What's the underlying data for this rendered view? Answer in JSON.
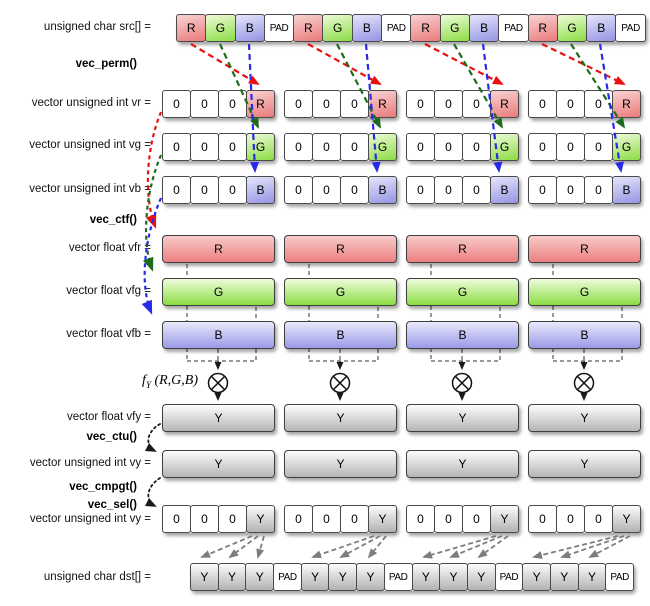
{
  "labels": {
    "src": "unsigned char src[] =",
    "vec_perm": "vec_perm()",
    "vr": "vector unsigned int vr =",
    "vg": "vector unsigned int vg =",
    "vb": "vector unsigned int vb =",
    "vec_ctf": "vec_ctf()",
    "vfr": "vector float vfr =",
    "vfg": "vector float vfg =",
    "vfb": "vector float vfb =",
    "fy_func": "f",
    "fy_sub": "Y",
    "fy_args": " (R,G,B)",
    "vfy": "vector float vfy =",
    "vec_ctu": "vec_ctu()",
    "vy": "vector unsigned int vy =",
    "vec_cmpgt": "vec_cmpgt()",
    "vec_sel": "vec_sel()",
    "vy2": "vector unsigned int vy =",
    "dst": "unsigned char dst[] ="
  },
  "rows": {
    "src": [
      "R",
      "G",
      "B",
      "PAD",
      "R",
      "G",
      "B",
      "PAD",
      "R",
      "G",
      "B",
      "PAD",
      "R",
      "G",
      "B",
      "PAD"
    ],
    "vr_groups": [
      [
        "0",
        "0",
        "0",
        "R"
      ],
      [
        "0",
        "0",
        "0",
        "R"
      ],
      [
        "0",
        "0",
        "0",
        "R"
      ],
      [
        "0",
        "0",
        "0",
        "R"
      ]
    ],
    "vg_groups": [
      [
        "0",
        "0",
        "0",
        "G"
      ],
      [
        "0",
        "0",
        "0",
        "G"
      ],
      [
        "0",
        "0",
        "0",
        "G"
      ],
      [
        "0",
        "0",
        "0",
        "G"
      ]
    ],
    "vb_groups": [
      [
        "0",
        "0",
        "0",
        "B"
      ],
      [
        "0",
        "0",
        "0",
        "B"
      ],
      [
        "0",
        "0",
        "0",
        "B"
      ],
      [
        "0",
        "0",
        "0",
        "B"
      ]
    ],
    "vy2_groups": [
      [
        "0",
        "0",
        "0",
        "Y"
      ],
      [
        "0",
        "0",
        "0",
        "Y"
      ],
      [
        "0",
        "0",
        "0",
        "Y"
      ],
      [
        "0",
        "0",
        "0",
        "Y"
      ]
    ],
    "dst": [
      "Y",
      "Y",
      "Y",
      "PAD",
      "Y",
      "Y",
      "Y",
      "PAD",
      "Y",
      "Y",
      "Y",
      "PAD",
      "Y",
      "Y",
      "Y",
      "PAD"
    ]
  },
  "bars": {
    "vfr": [
      "R",
      "R",
      "R",
      "R"
    ],
    "vfg": [
      "G",
      "G",
      "G",
      "G"
    ],
    "vfb": [
      "B",
      "B",
      "B",
      "B"
    ],
    "vfy": [
      "Y",
      "Y",
      "Y",
      "Y"
    ],
    "vy": [
      "Y",
      "Y",
      "Y",
      "Y"
    ]
  },
  "icons": {
    "multiply": "⊗"
  },
  "colors": {
    "red_cell": "#ea7a7a",
    "green_cell": "#8cdc44",
    "blue_cell": "#9494e4",
    "gray_cell": "#b2b2b2",
    "red_arrow": "#e81010",
    "green_arrow": "#1e6b1e",
    "blue_arrow": "#2929e8",
    "gray_arrow": "#7d7d7d",
    "black_arrow": "#1a1a1a"
  }
}
